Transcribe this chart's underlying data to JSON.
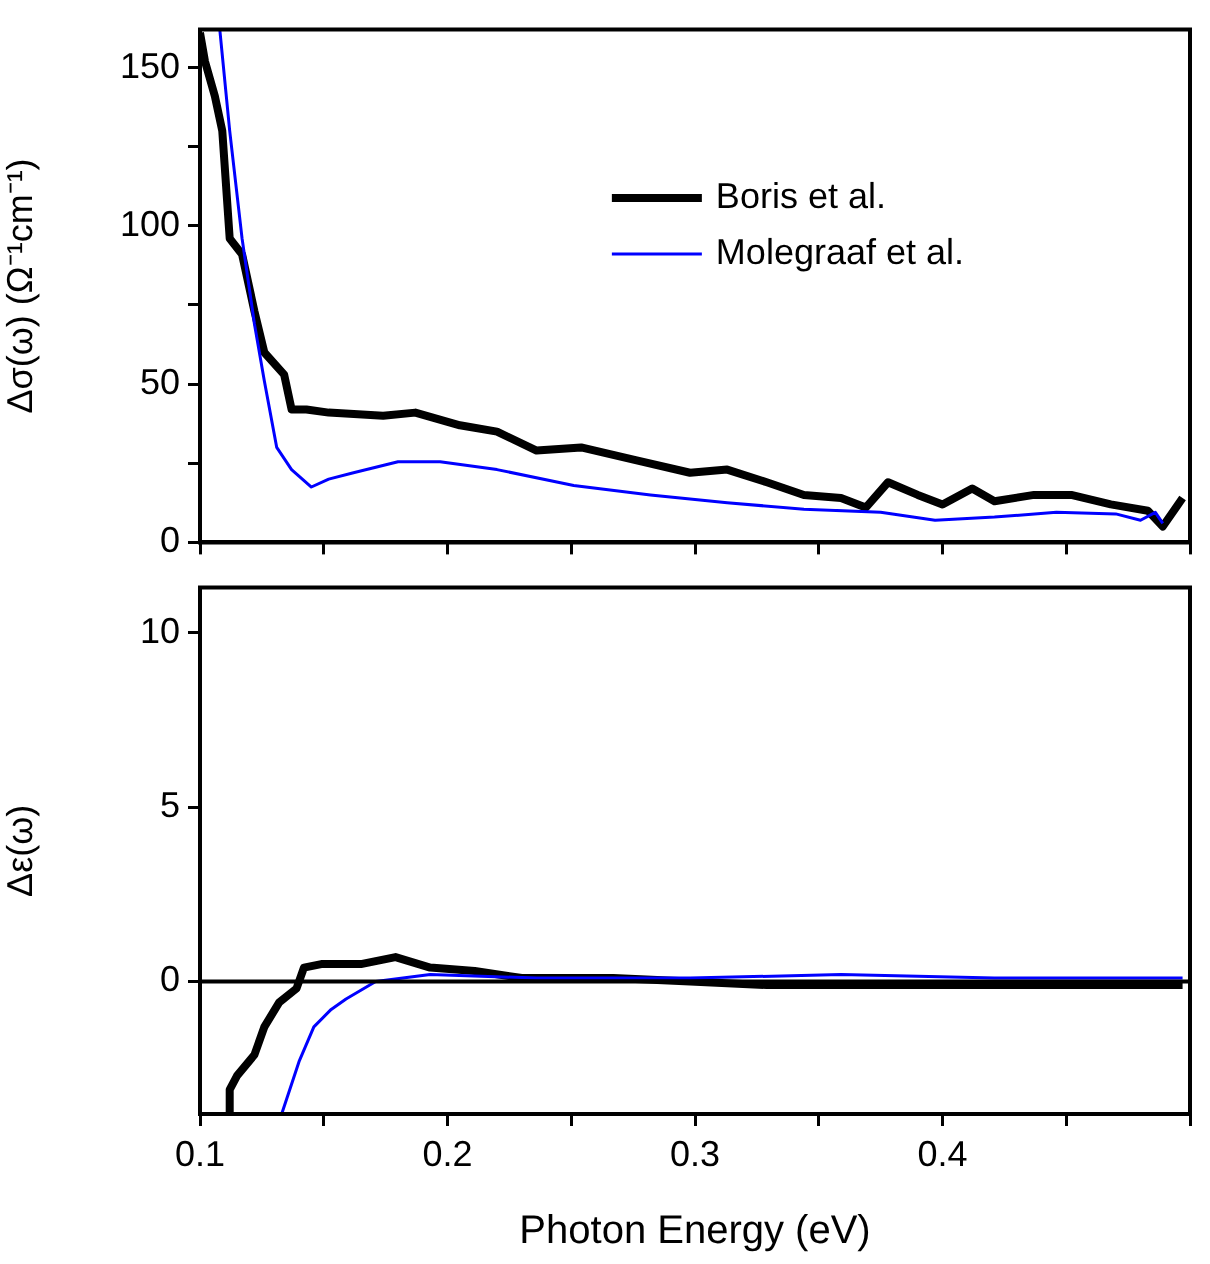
{
  "chart_data": [
    {
      "type": "line",
      "ylabel": "Δσ(ω) (Ω⁻¹cm⁻¹)",
      "xlim": [
        0.1,
        0.5
      ],
      "xticks": [
        0.1,
        {
          "value": 0.15,
          "label": null
        },
        0.2,
        {
          "value": 0.25,
          "label": null
        },
        0.3,
        {
          "value": 0.35,
          "label": null
        },
        0.4,
        {
          "value": 0.45,
          "label": null
        },
        {
          "value": 0.5,
          "label": null
        }
      ],
      "ylim": [
        0,
        162
      ],
      "yticks": [
        0,
        {
          "value": 25,
          "label": null
        },
        50,
        {
          "value": 75,
          "label": null
        },
        100,
        {
          "value": 125,
          "label": null
        },
        150
      ],
      "grid": false,
      "legend": "right",
      "tick_labels": "y",
      "series": [
        {
          "name": "Boris et al.",
          "color": "#000000",
          "x": [
            0.1,
            0.102,
            0.106,
            0.109,
            0.112,
            0.117,
            0.122,
            0.126,
            0.134,
            0.137,
            0.143,
            0.152,
            0.174,
            0.187,
            0.205,
            0.22,
            0.236,
            0.254,
            0.276,
            0.298,
            0.313,
            0.329,
            0.344,
            0.359,
            0.369,
            0.378,
            0.39,
            0.4,
            0.412,
            0.421,
            0.437,
            0.452,
            0.468,
            0.483,
            0.489,
            0.497
          ],
          "values": [
            161,
            152,
            141,
            130,
            96,
            91,
            73,
            60,
            53,
            42,
            42,
            41,
            40,
            41,
            37,
            35,
            29,
            30,
            26,
            22,
            23,
            19,
            15,
            14,
            11,
            19,
            15,
            12,
            17,
            13,
            15,
            15,
            12,
            10,
            5,
            14
          ]
        },
        {
          "name": "Molegraaf et al.",
          "color": "#0000ff",
          "x": [
            0.108,
            0.112,
            0.117,
            0.122,
            0.126,
            0.131,
            0.137,
            0.145,
            0.152,
            0.162,
            0.18,
            0.197,
            0.22,
            0.251,
            0.282,
            0.313,
            0.344,
            0.375,
            0.397,
            0.421,
            0.446,
            0.47,
            0.48,
            0.486,
            0.489
          ],
          "values": [
            162,
            130,
            96,
            69,
            51,
            30,
            23,
            17.5,
            20,
            22,
            25.5,
            25.5,
            23,
            18,
            15,
            12.5,
            10.5,
            9.5,
            7,
            8,
            9.5,
            9,
            7,
            9.5,
            6
          ]
        }
      ]
    },
    {
      "type": "line",
      "xlabel": "Photon Energy (eV)",
      "ylabel": "Δε(ω)",
      "xlim": [
        0.1,
        0.5
      ],
      "xticks": [
        0.1,
        {
          "value": 0.15,
          "label": null
        },
        0.2,
        {
          "value": 0.25,
          "label": null
        },
        0.3,
        {
          "value": 0.35,
          "label": null
        },
        0.4,
        {
          "value": 0.45,
          "label": null
        },
        {
          "value": 0.5,
          "label": null
        }
      ],
      "ylim": [
        -3.8,
        11.3
      ],
      "yticks": [
        0,
        5,
        10
      ],
      "grid": false,
      "legend": false,
      "ref_lines": [
        {
          "axis": "y",
          "value": 0,
          "color": "#000000"
        }
      ],
      "series": [
        {
          "color": "#000000",
          "x": [
            0.112,
            0.112,
            0.115,
            0.122,
            0.126,
            0.132,
            0.139,
            0.142,
            0.149,
            0.165,
            0.179,
            0.193,
            0.211,
            0.23,
            0.267,
            0.298,
            0.329,
            0.359,
            0.39,
            0.421,
            0.452,
            0.497
          ],
          "values": [
            -3.8,
            -3.1,
            -2.7,
            -2.1,
            -1.3,
            -0.6,
            -0.2,
            0.4,
            0.5,
            0.5,
            0.7,
            0.4,
            0.3,
            0.1,
            0.1,
            0,
            -0.1,
            -0.1,
            -0.1,
            -0.1,
            -0.1,
            -0.1
          ]
        },
        {
          "color": "#0000ff",
          "x": [
            0.133,
            0.14,
            0.146,
            0.153,
            0.159,
            0.171,
            0.193,
            0.236,
            0.298,
            0.359,
            0.421,
            0.497
          ],
          "values": [
            -3.8,
            -2.3,
            -1.3,
            -0.8,
            -0.5,
            0,
            0.2,
            0.1,
            0.1,
            0.2,
            0.1,
            0.1
          ]
        }
      ]
    }
  ]
}
